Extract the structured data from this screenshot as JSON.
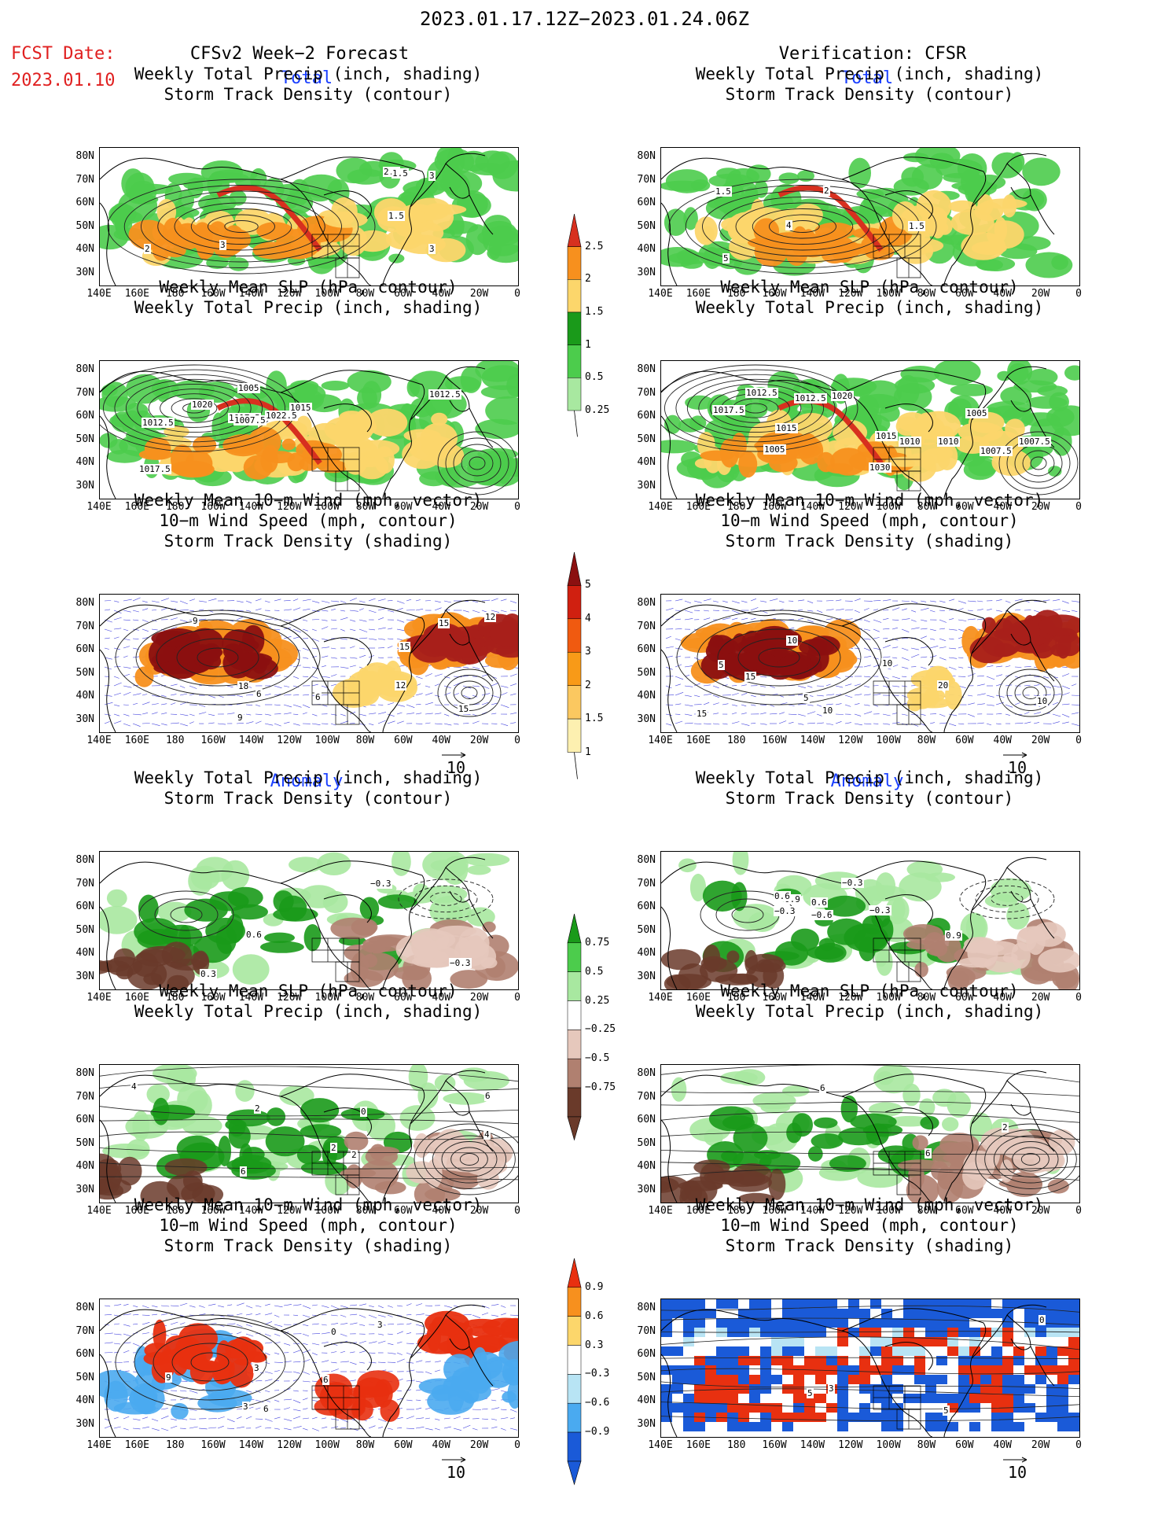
{
  "header": {
    "date_range": "2023.01.17.12Z−2023.01.24.06Z",
    "fcst_label": "FCST Date:",
    "fcst_date": "2023.01.10",
    "left_title": "CFSv2 Week−2 Forecast",
    "right_title": "Verification: CFSR"
  },
  "sections": {
    "total": "Total",
    "anomaly": "Anomaly"
  },
  "panel_titles": {
    "precip_storm": [
      "Weekly Total Precip (inch, shading)",
      "Storm Track Density (contour)"
    ],
    "slp_precip": [
      "Weekly Mean SLP (hPa, contour)",
      "Weekly Total Precip (inch, shading)"
    ],
    "wind_storm": [
      "Weekly Mean 10−m Wind (mph, vector)",
      "10−m Wind Speed (mph, contour)",
      "Storm Track Density (shading)"
    ]
  },
  "axes": {
    "lat_ticks": [
      "80N",
      "70N",
      "60N",
      "50N",
      "40N",
      "30N"
    ],
    "lon_ticks": [
      "140E",
      "160E",
      "180",
      "160W",
      "140W",
      "120W",
      "100W",
      "80W",
      "60W",
      "40W",
      "20W",
      "0"
    ]
  },
  "vector_ref": "10",
  "colorbars": {
    "total_precip": {
      "labels": [
        "2.5",
        "2",
        "1.5",
        "1",
        "0.5",
        "0.25"
      ],
      "colors": [
        "#d7301f",
        "#f7901e",
        "#fcd66b",
        "#1a9a1a",
        "#4ccc4c",
        "#a8e8a0"
      ]
    },
    "total_storm": {
      "labels": [
        "5",
        "4",
        "3",
        "2",
        "1.5",
        "1"
      ],
      "colors": [
        "#8b1010",
        "#d02010",
        "#f05a10",
        "#f89a18",
        "#fbc860",
        "#fdf0b0"
      ]
    },
    "anom_precip": {
      "labels": [
        "0.75",
        "0.5",
        "0.25",
        "−0.25",
        "−0.5",
        "−0.75"
      ],
      "colors": [
        "#1a9a1a",
        "#4ccc4c",
        "#a8e8a0",
        "#ffffff",
        "#e6c8bc",
        "#b08070",
        "#6a3a2a"
      ]
    },
    "anom_storm": {
      "labels": [
        "0.9",
        "0.6",
        "0.3",
        "−0.3",
        "−0.6",
        "−0.9"
      ],
      "colors": [
        "#e83010",
        "#f7901e",
        "#fcd66b",
        "#ffffff",
        "#b8e4f4",
        "#4aaaf0",
        "#1a5ad8"
      ]
    }
  },
  "contour_labels": {
    "p1": [
      "3",
      "3",
      "2.5",
      "1.5",
      "3",
      "2",
      "1.5"
    ],
    "p2": [
      "4",
      "1.5",
      "2",
      "5",
      "1.5"
    ],
    "p3": [
      "1017.5",
      "1007.5",
      "1012.5",
      "1015",
      "1022.5",
      "1020",
      "1005",
      "1012.5",
      "1017.5"
    ],
    "p4": [
      "1012.5",
      "1015",
      "1010",
      "1007.5",
      "1012.5",
      "1015",
      "1010",
      "1007.5",
      "1005",
      "1030",
      "1017.5",
      "1005",
      "1020"
    ],
    "p5": [
      "9",
      "12",
      "6",
      "9",
      "15",
      "18",
      "15",
      "12",
      "6",
      "15"
    ],
    "p6": [
      "5",
      "10",
      "15",
      "10",
      "20",
      "10",
      "15",
      "5",
      "10"
    ],
    "p7": [
      "0.6",
      "0.3",
      "−0.3",
      "−0.3"
    ],
    "p8": [
      "−0.6",
      "−0.3",
      "0.6",
      "0.9",
      "0.6",
      "−0.3",
      "0.9",
      "−0.3"
    ],
    "p9": [
      "2",
      "0",
      "4",
      "2",
      "4",
      "2",
      "6",
      "6"
    ],
    "p10": [
      "6",
      "2",
      "6"
    ],
    "p11": [
      "6",
      "9",
      "3",
      "3",
      "6",
      "3",
      "0"
    ],
    "p12": [
      "3",
      "5",
      "0",
      "5"
    ]
  }
}
